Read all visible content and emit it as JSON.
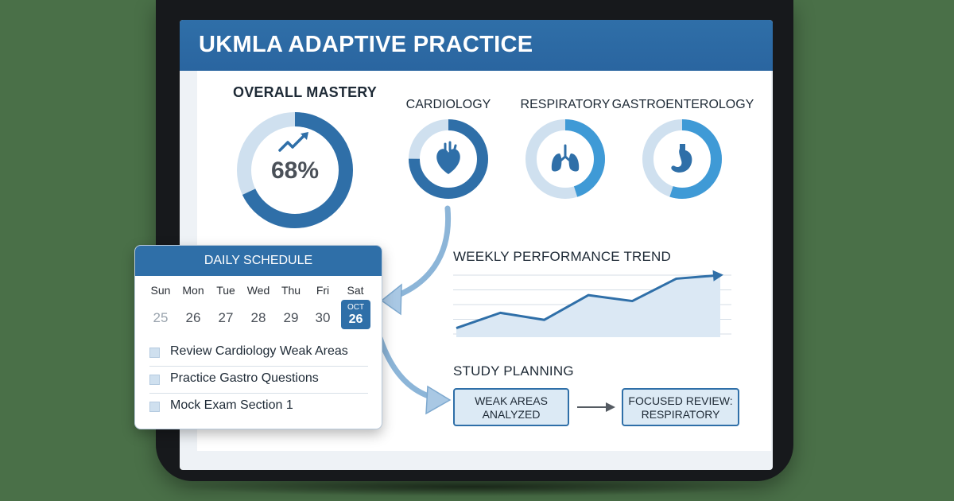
{
  "app": {
    "title": "UKMLA ADAPTIVE PRACTICE"
  },
  "overall": {
    "label": "OVERALL MASTERY",
    "value": "68%",
    "fraction": 0.68,
    "icon": "trend-up-icon"
  },
  "categories": [
    {
      "label": "CARDIOLOGY",
      "fraction": 0.75,
      "icon": "heart-icon"
    },
    {
      "label": "RESPIRATORY",
      "fraction": 0.45,
      "icon": "lungs-icon"
    },
    {
      "label": "GASTROENTEROLOGY",
      "fraction": 0.55,
      "icon": "stomach-icon"
    }
  ],
  "schedule": {
    "title": "DAILY SCHEDULE",
    "days": [
      {
        "name": "Sun",
        "num": "25"
      },
      {
        "name": "Mon",
        "num": "26"
      },
      {
        "name": "Tue",
        "num": "27"
      },
      {
        "name": "Wed",
        "num": "28"
      },
      {
        "name": "Thu",
        "num": "29"
      },
      {
        "name": "Fri",
        "num": "30"
      },
      {
        "name": "Sat",
        "num": "26",
        "month": "OCT"
      }
    ],
    "tasks": [
      "Review Cardiology Weak Areas",
      "Practice Gastro Questions",
      "Mock Exam Section 1"
    ]
  },
  "trend": {
    "title": "WEEKLY PERFORMANCE TREND",
    "chart_data": {
      "type": "line",
      "x": [
        1,
        2,
        3,
        4,
        5,
        6,
        7
      ],
      "values": [
        10,
        36,
        24,
        66,
        56,
        94,
        100
      ],
      "ylim": [
        0,
        100
      ],
      "grid": true
    }
  },
  "planning": {
    "title": "STUDY PLANNING",
    "step1": [
      "WEAK AREAS",
      "ANALYZED"
    ],
    "step2": [
      "FOCUSED REVIEW:",
      "RESPIRATORY"
    ]
  },
  "colors": {
    "primary": "#2f6fa8",
    "accent": "#3f9ad6",
    "ring_track": "#cfe0ef",
    "background": "#4a7048"
  }
}
